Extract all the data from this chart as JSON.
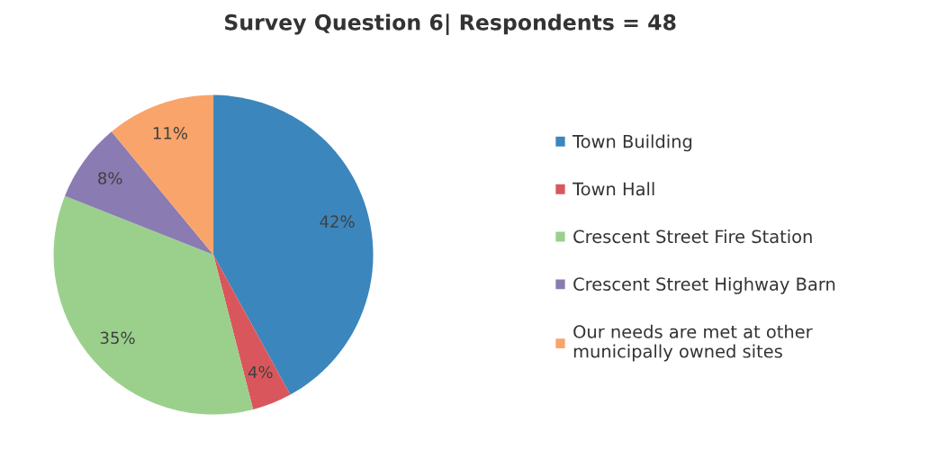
{
  "chart_data": {
    "type": "pie",
    "title": "Survey Question 6| Respondents = 48",
    "categories": [
      "Town Building",
      "Town Hall",
      "Crescent Street Fire Station",
      "Crescent Street Highway Barn",
      "Our needs are met at other\nmunicipally owned sites"
    ],
    "values": [
      42,
      4,
      35,
      8,
      11
    ],
    "value_labels": [
      "42%",
      "4%",
      "35%",
      "8%",
      "11%"
    ],
    "colors": [
      "#3b86bc",
      "#d9575c",
      "#9bd08c",
      "#8a7bb2",
      "#f9a46b"
    ],
    "legend": "right"
  }
}
